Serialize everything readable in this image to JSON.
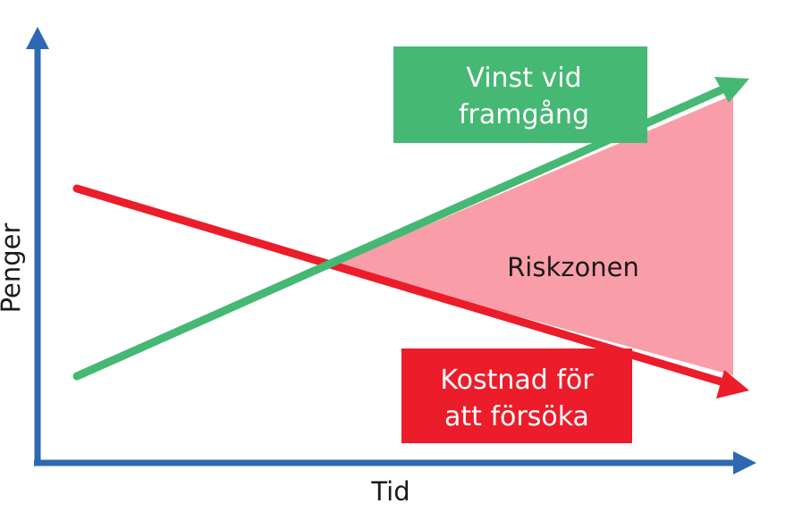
{
  "axes": {
    "y_label": "Penger",
    "x_label": "Tid",
    "color": "#2e68b3"
  },
  "gain": {
    "label_line1": "Vinst vid",
    "label_line2": "framgång",
    "color": "#45b874"
  },
  "cost": {
    "label_line1": "Kostnad för",
    "label_line2": "att försöka",
    "color": "#ec1c2a"
  },
  "risk_zone": {
    "label": "Riskzonen",
    "color": "#f99ea9"
  }
}
